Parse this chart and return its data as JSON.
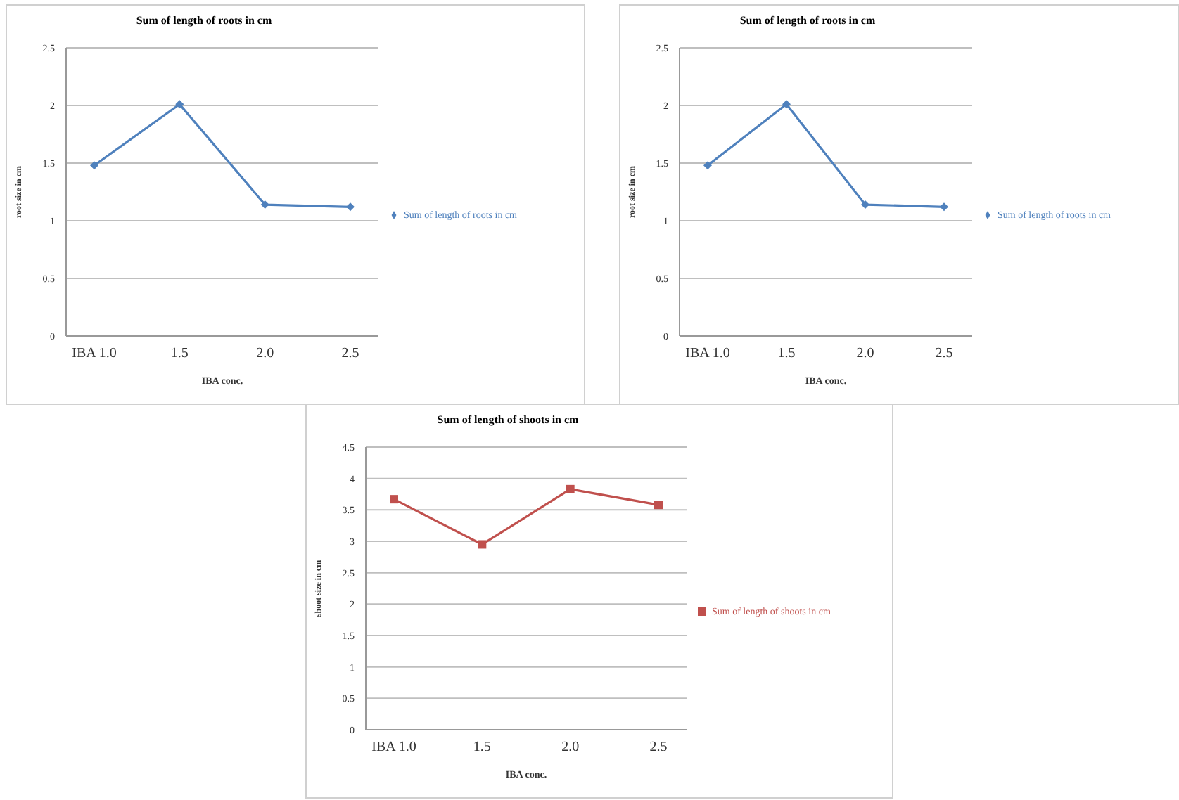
{
  "chart_data": [
    {
      "type": "line",
      "title": "Sum of length of roots in cm",
      "xlabel": "IBA conc.",
      "ylabel": "root size in cm",
      "categories": [
        "IBA 1.0",
        "1.5",
        "2.0",
        "2.5"
      ],
      "series": [
        {
          "name": "Sum of length of roots in cm",
          "color": "#4f81bd",
          "values": [
            1.48,
            2.01,
            1.14,
            1.12
          ]
        }
      ],
      "ylim": [
        0,
        2.5
      ],
      "yticks": [
        0,
        0.5,
        1,
        1.5,
        2,
        2.5
      ],
      "grid": "y",
      "legend": "right",
      "marker": "diamond"
    },
    {
      "type": "line",
      "title": "Sum of length of roots in cm",
      "xlabel": "IBA conc.",
      "ylabel": "root size in cm",
      "categories": [
        "IBA 1.0",
        "1.5",
        "2.0",
        "2.5"
      ],
      "series": [
        {
          "name": "Sum of length of roots in cm",
          "color": "#4f81bd",
          "values": [
            1.48,
            2.01,
            1.14,
            1.12
          ]
        }
      ],
      "ylim": [
        0,
        2.5
      ],
      "yticks": [
        0,
        0.5,
        1,
        1.5,
        2,
        2.5
      ],
      "grid": "y",
      "legend": "right",
      "marker": "diamond"
    },
    {
      "type": "line",
      "title": "Sum of length of shoots in cm",
      "xlabel": "IBA conc.",
      "ylabel": "shoot size in cm",
      "categories": [
        "IBA 1.0",
        "1.5",
        "2.0",
        "2.5"
      ],
      "series": [
        {
          "name": "Sum of length of shoots in cm",
          "color": "#c0504d",
          "values": [
            3.67,
            2.95,
            3.83,
            3.58
          ]
        }
      ],
      "ylim": [
        0,
        4.5
      ],
      "yticks": [
        0,
        0.5,
        1,
        1.5,
        2,
        2.5,
        3,
        3.5,
        4,
        4.5
      ],
      "grid": "y",
      "legend": "right",
      "marker": "square"
    }
  ]
}
